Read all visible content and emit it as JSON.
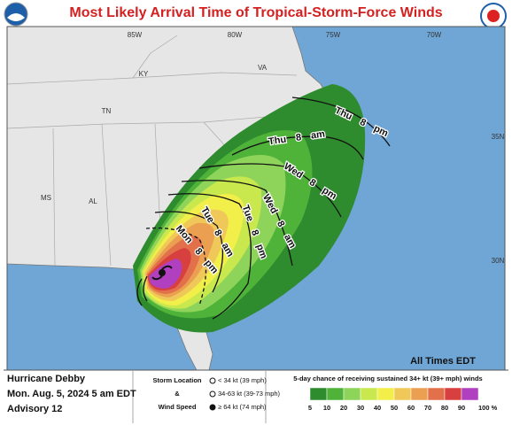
{
  "header": {
    "title": "Most Likely Arrival Time of Tropical-Storm-Force Winds"
  },
  "map": {
    "longitude_labels": [
      "85W",
      "80W",
      "75W",
      "70W"
    ],
    "latitude_labels": [
      "35N",
      "30N"
    ],
    "state_labels": [
      "KY",
      "VA",
      "TN",
      "MS",
      "AL"
    ],
    "arrival_labels": [
      "Thu 8 pm",
      "Thu 8 am",
      "Wed 8 pm",
      "Wed 8 am",
      "Tue 8 pm",
      "Tue 8 am",
      "Mon 8 pm"
    ],
    "times_note": "All Times EDT"
  },
  "legend": {
    "storm": [
      "Hurricane Debby",
      "Mon. Aug. 5, 2024  5 am EDT",
      "Advisory 12"
    ],
    "symbol_title": [
      "Storm Location",
      "&",
      "Wind Speed"
    ],
    "symbols": [
      "< 34 kt (39 mph)",
      "34-63 kt (39-73 mph)",
      "≥ 64 kt (74 mph)"
    ],
    "scale_title": "5-day chance of receiving sustained 34+ kt (39+ mph) winds",
    "scale_labels": [
      "5",
      "10",
      "20",
      "30",
      "40",
      "50",
      "60",
      "70",
      "80",
      "90",
      "100 %"
    ],
    "scale_colors": [
      "#2e8b2e",
      "#4fb33a",
      "#8fd45a",
      "#c8e84e",
      "#f2ee4a",
      "#f0c85a",
      "#eaa050",
      "#e2704a",
      "#d84040",
      "#b040c0"
    ]
  }
}
